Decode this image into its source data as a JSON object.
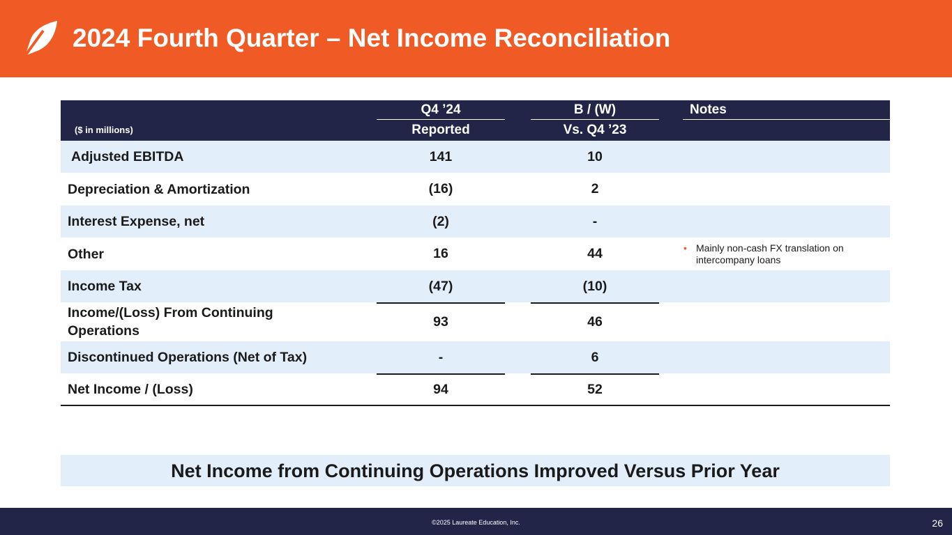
{
  "header": {
    "title": "2024 Fourth Quarter – Net Income Reconciliation",
    "logo_icon": "leaf-logo-icon"
  },
  "table": {
    "units_label": "($ in millions)",
    "columns": {
      "q4_top": "Q4 ’24",
      "q4_bottom": "Reported",
      "bw_top": "B / (W)",
      "bw_bottom": "Vs. Q4 ’23",
      "notes": "Notes"
    },
    "rows": [
      {
        "label": "Adjusted EBITDA",
        "reported": "141",
        "vs_prior": "10",
        "note": ""
      },
      {
        "label": "Depreciation & Amortization",
        "reported": "(16)",
        "vs_prior": "2",
        "note": ""
      },
      {
        "label": "Interest Expense, net",
        "reported": "(2)",
        "vs_prior": "-",
        "note": ""
      },
      {
        "label": "Other",
        "reported": "16",
        "vs_prior": "44",
        "note": "Mainly non-cash FX translation on intercompany loans"
      },
      {
        "label": "Income Tax",
        "reported": "(47)",
        "vs_prior": "(10)",
        "note": ""
      },
      {
        "label": "Income/(Loss) From Continuing Operations",
        "reported": "93",
        "vs_prior": "46",
        "note": ""
      },
      {
        "label": "Discontinued Operations (Net of Tax)",
        "reported": "-",
        "vs_prior": "6",
        "note": ""
      },
      {
        "label": "Net Income / (Loss)",
        "reported": "94",
        "vs_prior": "52",
        "note": ""
      }
    ]
  },
  "callout": "Net Income from Continuing Operations Improved Versus Prior Year",
  "footer": {
    "copyright": "©2025 Laureate Education, Inc.",
    "page_number": "26"
  },
  "colors": {
    "brand_orange": "#f05a24",
    "navy": "#222548",
    "row_shade": "#e3eefb"
  }
}
